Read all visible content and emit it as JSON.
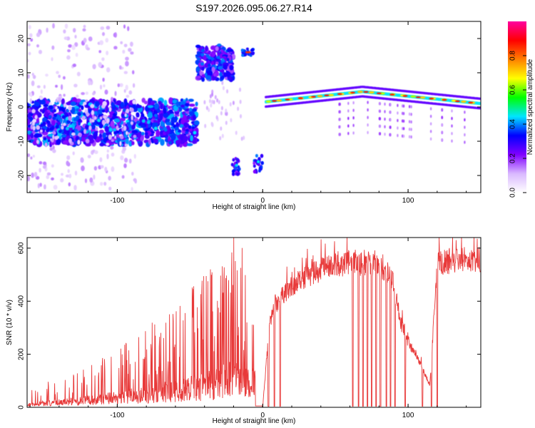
{
  "title": "S197.2026.095.06.27.R14",
  "chart_data": [
    {
      "type": "heatmap",
      "name": "spectrogram",
      "xlabel": "Height of straight line (km)",
      "ylabel": "Frequency (Hz)",
      "xlim": [
        -162,
        150
      ],
      "ylim": [
        -25,
        25
      ],
      "xticks": [
        -100,
        0,
        100
      ],
      "yticks": [
        20,
        10,
        0,
        -10,
        -20
      ],
      "colorbar": {
        "label": "Normalized spectral amplitude",
        "range": [
          0,
          1
        ],
        "ticks": [
          0.0,
          0.2,
          0.4,
          0.6,
          0.8
        ],
        "colors": [
          "#ffffff",
          "#d9b8ff",
          "#8000ff",
          "#0000ff",
          "#00e5ff",
          "#00ff00",
          "#ffff00",
          "#ff8000",
          "#ff0000",
          "#ff00a0"
        ]
      },
      "regions": [
        {
          "name": "noisy-band",
          "x": [
            -162,
            -45
          ],
          "freq": [
            -11,
            2
          ],
          "amplitude": 0.35
        },
        {
          "name": "upper-cluster",
          "x": [
            -45,
            -20
          ],
          "freq": [
            8,
            18
          ],
          "amplitude": 0.4
        },
        {
          "name": "upper-spot",
          "x": [
            -14,
            -6
          ],
          "freq": [
            15,
            17
          ],
          "amplitude": 0.85
        },
        {
          "name": "lower-spots",
          "x": [
            -22,
            0
          ],
          "freq": [
            -20,
            -14
          ],
          "amplitude": 0.45
        },
        {
          "name": "tone-track",
          "x": [
            2,
            150
          ],
          "freq_start": 1.5,
          "freq_peak": 4.5,
          "freq_end": 1,
          "amplitude": 0.9
        }
      ]
    },
    {
      "type": "line",
      "name": "snr",
      "xlabel": "Height of straight line (km)",
      "ylabel": "SNR (10 * v/v)",
      "xlim": [
        -162,
        150
      ],
      "ylim": [
        0,
        640
      ],
      "xticks": [
        -100,
        0,
        100
      ],
      "yticks": [
        0,
        200,
        400,
        600
      ],
      "color": "#e83a3a",
      "envelope": {
        "x": [
          -162,
          -140,
          -120,
          -100,
          -80,
          -60,
          -45,
          -30,
          -20,
          -10,
          -5,
          0,
          5,
          10,
          20,
          30,
          50,
          60,
          70,
          80,
          85,
          90,
          95,
          100,
          105,
          110,
          115,
          120,
          130,
          140,
          150
        ],
        "y": [
          15,
          28,
          40,
          55,
          75,
          95,
          115,
          140,
          170,
          130,
          60,
          5,
          330,
          400,
          460,
          500,
          545,
          550,
          550,
          540,
          520,
          470,
          320,
          250,
          205,
          145,
          85,
          545,
          560,
          565,
          560
        ]
      },
      "dropouts_x": [
        0,
        4,
        8,
        12,
        62,
        66,
        69,
        72,
        75,
        78,
        81,
        85,
        88,
        91,
        98,
        110,
        116,
        120
      ]
    }
  ]
}
